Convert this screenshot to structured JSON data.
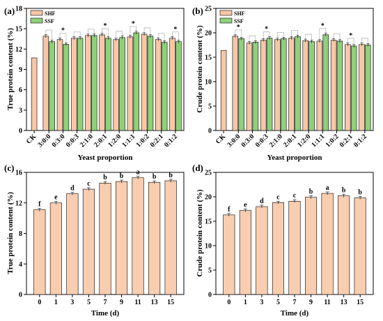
{
  "colors": {
    "shf": "#f7c7a6",
    "ssf": "#8fd07a",
    "time": "#f9cdb0",
    "bracket": "#b5b5b5"
  },
  "chart_data": [
    {
      "panel": "(a)",
      "type": "bar",
      "xlabel": "Yeast proportion",
      "ylabel": "True protein content (%)",
      "ylim": [
        0,
        18
      ],
      "yticks": [
        "0",
        "3",
        "6",
        "9",
        "12",
        "15",
        "18"
      ],
      "control": {
        "label": "CK",
        "value": 10.7
      },
      "categories": [
        "3:0:0",
        "0:3:0",
        "0:0:3",
        "2:1:0",
        "2:0:1",
        "1:2:0",
        "1:1:1",
        "1:0:2",
        "0:2:1",
        "0:1:2"
      ],
      "series": [
        {
          "name": "SHF",
          "values": [
            13.9,
            13.4,
            13.6,
            14.0,
            14.1,
            13.4,
            13.8,
            14.2,
            13.4,
            13.6
          ]
        },
        {
          "name": "SSF",
          "values": [
            13.1,
            12.7,
            13.6,
            14.0,
            13.6,
            13.7,
            14.4,
            13.9,
            13.0,
            13.1
          ]
        }
      ],
      "significance": [
        "",
        "*",
        "",
        "",
        "*",
        "",
        "*",
        "",
        "",
        "*"
      ]
    },
    {
      "panel": "(b)",
      "type": "bar",
      "xlabel": "Yeast proportion",
      "ylabel": "Crude protein content (%)",
      "ylim": [
        0,
        25
      ],
      "yticks": [
        "0",
        "5",
        "10",
        "15",
        "20",
        "25"
      ],
      "control": {
        "label": "CK",
        "value": 16.4
      },
      "categories": [
        "3:0:0",
        "0:3:0",
        "0:0:3",
        "2:1:0",
        "2:0:1",
        "1:2:0",
        "1:1:1",
        "1:0:2",
        "0:2:1",
        "0:1:2"
      ],
      "series": [
        {
          "name": "SHF",
          "values": [
            19.3,
            17.9,
            18.5,
            18.6,
            18.9,
            18.4,
            18.3,
            18.5,
            17.6,
            17.6
          ]
        },
        {
          "name": "SSF",
          "values": [
            18.8,
            18.1,
            18.9,
            18.8,
            19.2,
            18.2,
            19.6,
            18.3,
            17.3,
            17.5
          ]
        }
      ],
      "significance": [
        "*",
        "",
        "*",
        "",
        "",
        "",
        "*",
        "",
        "*",
        ""
      ]
    },
    {
      "panel": "(c)",
      "type": "bar",
      "xlabel": "Time (d)",
      "ylabel": "True protein content (%)",
      "ylim": [
        0,
        16
      ],
      "yticks": [
        "0",
        "4",
        "8",
        "12",
        "16"
      ],
      "categories": [
        "0",
        "1",
        "3",
        "5",
        "7",
        "9",
        "11",
        "13",
        "15"
      ],
      "values": [
        11.1,
        12.0,
        13.2,
        13.8,
        14.6,
        14.8,
        15.3,
        14.7,
        14.9
      ],
      "letters": [
        "f",
        "e",
        "d",
        "c",
        "b",
        "b",
        "a",
        "b",
        "b"
      ]
    },
    {
      "panel": "(d)",
      "type": "bar",
      "xlabel": "Time (d)",
      "ylabel": "Crude protein content (%)",
      "ylim": [
        0,
        25
      ],
      "yticks": [
        "0",
        "5",
        "10",
        "15",
        "20",
        "25"
      ],
      "categories": [
        "0",
        "1",
        "3",
        "5",
        "7",
        "9",
        "11",
        "13",
        "15"
      ],
      "values": [
        16.3,
        17.2,
        18.0,
        18.8,
        19.1,
        19.9,
        20.7,
        20.2,
        19.8
      ],
      "letters": [
        "f",
        "e",
        "d",
        "c",
        "c",
        "b",
        "a",
        "b",
        "b"
      ]
    }
  ]
}
